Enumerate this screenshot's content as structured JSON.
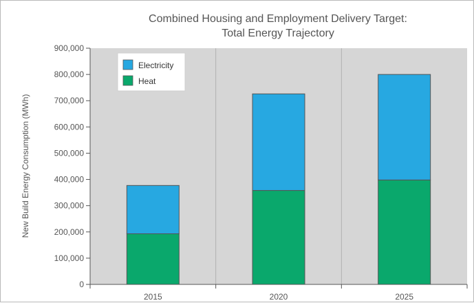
{
  "chart_data": {
    "type": "bar",
    "stacked": true,
    "title": [
      "Combined Housing and Employment Delivery Target:",
      "Total Energy Trajectory"
    ],
    "xlabel": "",
    "ylabel": "New Build Energy Consumption (MWh)",
    "categories": [
      "2015",
      "2020",
      "2025"
    ],
    "series": [
      {
        "name": "Heat",
        "values": [
          193000,
          358000,
          398000
        ],
        "color": "#0aa86c"
      },
      {
        "name": "Electricity",
        "values": [
          184000,
          368000,
          402000
        ],
        "color": "#27a8e1"
      }
    ],
    "ylim": [
      0,
      900000
    ],
    "yticks": [
      0,
      100000,
      200000,
      300000,
      400000,
      500000,
      600000,
      700000,
      800000,
      900000
    ],
    "ytick_labels": [
      "0",
      "100,000",
      "200,000",
      "300,000",
      "400,000",
      "500,000",
      "600,000",
      "700,000",
      "800,000",
      "900,000"
    ],
    "grid": "vertical",
    "legend_order": [
      "Electricity",
      "Heat"
    ],
    "legend_position": "top-left",
    "plot_background": "#d6d6d6"
  }
}
